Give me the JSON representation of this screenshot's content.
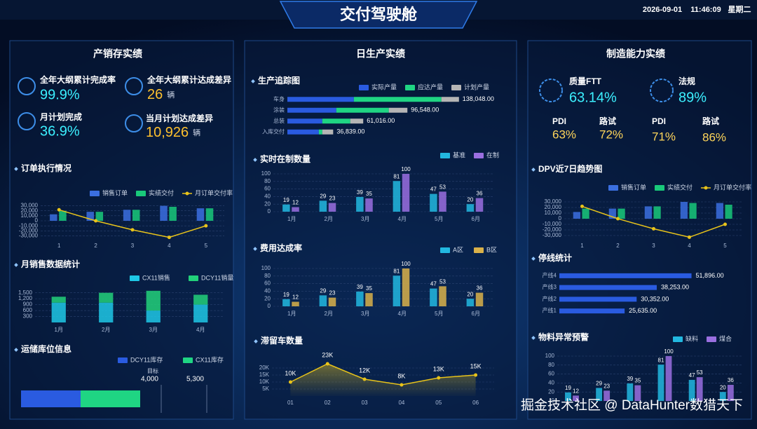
{
  "header": {
    "title": "交付驾驶舱",
    "date": "2026-09-01",
    "time": "11:46:09",
    "weekday": "星期二"
  },
  "panels": [
    {
      "title": "产销存实绩"
    },
    {
      "title": "日生产实绩"
    },
    {
      "title": "制造能力实绩"
    }
  ],
  "left_kpis": [
    {
      "label": "全年大纲累计完成率",
      "value": "99.9%"
    },
    {
      "label": "全年大纲累计达成差异",
      "value": "26",
      "unit": "辆"
    },
    {
      "label": "月计划完成",
      "value": "36.9%"
    },
    {
      "label": "当月计划达成差异",
      "value": "10,926",
      "unit": "辆"
    }
  ],
  "right_kpis": [
    {
      "label": "质量FTT",
      "value": "63.14%"
    },
    {
      "label": "法规",
      "value": "89%"
    }
  ],
  "right_small_kpis": [
    {
      "label": "PDI",
      "value": "63%"
    },
    {
      "label": "路试",
      "value": "72%"
    },
    {
      "label": "PDI",
      "value": "71%"
    },
    {
      "label": "路试",
      "value": "86%"
    }
  ],
  "watermark": "掘金技术社区 @ DataHunter数猎天下",
  "chart_data": [
    {
      "type": "bar",
      "title": "订单执行情况",
      "categories": [
        "1",
        "2",
        "3",
        "4",
        "5"
      ],
      "series": [
        {
          "name": "销售订单",
          "color": "#3b6fe0",
          "values": [
            13000,
            18000,
            22000,
            30000,
            25000
          ]
        },
        {
          "name": "实绩交付",
          "color": "#19c97a",
          "values": [
            20000,
            18000,
            22000,
            28000,
            25000
          ]
        },
        {
          "name": "月订单交付率",
          "color": "#e8c31a",
          "type": "line",
          "values": [
            22000,
            0,
            -18000,
            -33000,
            -10000
          ]
        }
      ],
      "ylim": [
        -35000,
        35000
      ],
      "yticks": [
        {
          "value": -30000,
          "label": "-30,000"
        },
        {
          "value": -20000,
          "label": "-20,000"
        },
        {
          "value": -10000,
          "label": "-10,000"
        },
        0,
        {
          "value": 10000,
          "label": "10,000"
        },
        {
          "value": 20000,
          "label": "20,000"
        },
        {
          "value": 30000,
          "label": "30,000"
        }
      ],
      "grid": true
    },
    {
      "type": "bar",
      "title": "月销售数据统计",
      "stacked": true,
      "categories": [
        "1月",
        "2月",
        "3月",
        "4月"
      ],
      "series": [
        {
          "name": "CX11销售",
          "color": "#1ec8e6",
          "values": [
            1000,
            1000,
            600,
            900
          ]
        },
        {
          "name": "DCY11销量",
          "color": "#22d17a",
          "values": [
            300,
            500,
            1000,
            500
          ]
        }
      ],
      "ylim": [
        0,
        1700
      ],
      "yticks": [
        300,
        600,
        900,
        {
          "value": 1200,
          "label": "1,200"
        },
        {
          "value": 1500,
          "label": "1,500"
        }
      ],
      "grid": true
    },
    {
      "type": "bar",
      "orientation": "horizontal",
      "stacked": true,
      "title": "运储库位信息",
      "categories": [
        null
      ],
      "series": [
        {
          "name": "DCY11库存",
          "color": "#2a5be0",
          "values": [
            1700
          ]
        },
        {
          "name": "CX11库存",
          "color": "#1fd583",
          "values": [
            1700
          ]
        }
      ],
      "xlim": [
        0,
        6000
      ],
      "markers": [
        {
          "name": "目标",
          "value": 4000,
          "label": "4,000"
        },
        {
          "value": 5300,
          "label": "5,300"
        }
      ]
    },
    {
      "type": "bar",
      "orientation": "horizontal",
      "stacked": true,
      "title": "生产追踪图",
      "categories": [
        "车身",
        "涂装",
        "总装",
        "入库交付"
      ],
      "series": [
        {
          "name": "实际产量",
          "color": "#2a5be0",
          "values": [
            53500,
            39400,
            28100,
            25300
          ]
        },
        {
          "name": "应达产量",
          "color": "#1fd583",
          "values": [
            70400,
            42200,
            22500,
            2800
          ]
        },
        {
          "name": "计划产量",
          "color": "#b5b5b5",
          "values": [
            14148,
            14948,
            10416,
            8739
          ]
        }
      ],
      "totals": [
        138048,
        96548,
        61016,
        36839
      ],
      "totals_labels": [
        "138,048.00",
        "96,548.00",
        "61,016.00",
        "36,839.00"
      ],
      "xlim": [
        0,
        150000
      ]
    },
    {
      "type": "bar",
      "title": "实时在制数量",
      "data_labels": true,
      "categories": [
        "1月",
        "2月",
        "3月",
        "4月",
        "5月",
        "6月"
      ],
      "series": [
        {
          "name": "基准",
          "color": "#22b8e0",
          "values": [
            19,
            29,
            39,
            81,
            47,
            20
          ]
        },
        {
          "name": "在制",
          "color": "#9a6fe0",
          "values": [
            12,
            23,
            35,
            100,
            53,
            36
          ]
        }
      ],
      "ylim": [
        0,
        100
      ],
      "yticks": [
        0,
        20,
        40,
        60,
        80,
        100
      ],
      "grid": true
    },
    {
      "type": "bar",
      "title": "费用达成率",
      "data_labels": true,
      "categories": [
        "1月",
        "2月",
        "3月",
        "4月",
        "5月",
        "6月"
      ],
      "series": [
        {
          "name": "A区",
          "color": "#22b8e0",
          "values": [
            19,
            29,
            39,
            81,
            47,
            20
          ]
        },
        {
          "name": "B区",
          "color": "#d9b14a",
          "values": [
            12,
            23,
            35,
            100,
            53,
            36
          ]
        }
      ],
      "ylim": [
        0,
        100
      ],
      "yticks": [
        0,
        20,
        40,
        60,
        80,
        100
      ],
      "grid": true
    },
    {
      "type": "line",
      "title": "滞留车数量",
      "area": true,
      "color": "#e8c31a",
      "categories": [
        "01",
        "02",
        "03",
        "04",
        "05",
        "06"
      ],
      "values": [
        10000,
        23000,
        12000,
        8000,
        13000,
        15000
      ],
      "value_labels": [
        "10K",
        "23K",
        "12K",
        "8K",
        "13K",
        "15K"
      ],
      "ylim": [
        0,
        25000
      ],
      "yticks": [
        {
          "value": 5000,
          "label": "5K"
        },
        {
          "value": 10000,
          "label": "10K"
        },
        {
          "value": 15000,
          "label": "15K"
        },
        {
          "value": 20000,
          "label": "20K"
        }
      ],
      "grid": true
    },
    {
      "type": "bar",
      "title": "DPV近7日趋势图",
      "categories": [
        "1",
        "2",
        "3",
        "4",
        "5"
      ],
      "series": [
        {
          "name": "销售订单",
          "color": "#3b6fe0",
          "values": [
            12000,
            18000,
            22000,
            30000,
            28000
          ]
        },
        {
          "name": "实绩交付",
          "color": "#19c97a",
          "values": [
            18000,
            18000,
            22000,
            28000,
            25000
          ]
        },
        {
          "name": "月订单交付率",
          "color": "#e8c31a",
          "type": "line",
          "values": [
            22000,
            0,
            -18000,
            -33000,
            -10000
          ]
        }
      ],
      "ylim": [
        -35000,
        35000
      ],
      "yticks": [
        {
          "value": -30000,
          "label": "-30,000"
        },
        {
          "value": -20000,
          "label": "-20,000"
        },
        {
          "value": -10000,
          "label": "-10,000"
        },
        0,
        {
          "value": 10000,
          "label": "10,000"
        },
        {
          "value": 20000,
          "label": "20,000"
        },
        {
          "value": 30000,
          "label": "30,000"
        }
      ],
      "grid": true
    },
    {
      "type": "bar",
      "orientation": "horizontal",
      "title": "停线统计",
      "color": "#2a5be0",
      "categories": [
        "产线4",
        "产线3",
        "产线2",
        "产线1"
      ],
      "values": [
        51896,
        38253,
        30352,
        25635
      ],
      "value_labels": [
        "51,896.00",
        "38,253.00",
        "30,352.00",
        "25,635.00"
      ],
      "xlim": [
        0,
        60000
      ]
    },
    {
      "type": "bar",
      "title": "物料异常预警",
      "data_labels": true,
      "categories": [
        null,
        null,
        null,
        null,
        null,
        null
      ],
      "series": [
        {
          "name": "缺料",
          "color": "#22b8e0",
          "values": [
            19,
            29,
            39,
            81,
            47,
            20
          ]
        },
        {
          "name": "煤合",
          "color": "#9a6fe0",
          "values": [
            12,
            23,
            35,
            100,
            53,
            36
          ]
        }
      ],
      "ylim": [
        0,
        100
      ],
      "yticks": [
        0,
        20,
        40,
        60,
        80,
        100
      ],
      "grid": true
    }
  ]
}
